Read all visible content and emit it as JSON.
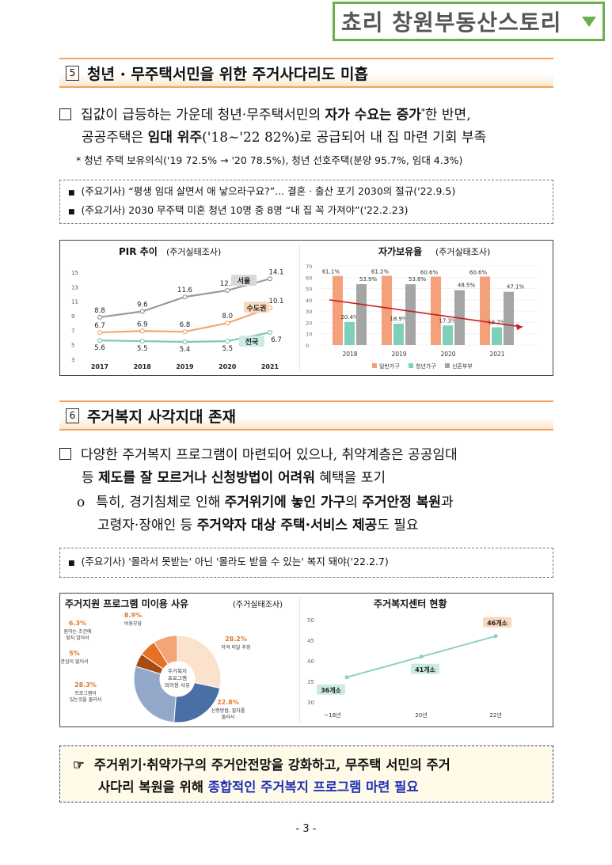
{
  "header_tag": "쵸리 창원부동산스토리",
  "section5": {
    "num": "5",
    "title": "청년 · 무주택서민을 위한 주거사다리도 미흡",
    "p1_a": "집값이 급등하는 가운데 청년·무주택서민의 ",
    "p1_b": "자가 수요는 증가",
    "p1_star": "*",
    "p1_c": "한 반면,",
    "p1_d": "공공주택은 ",
    "p1_e": "임대 위주",
    "p1_f": "('18~'22 82%)로 공급되어 내 집 마련 기회 부족",
    "note": "* 청년 주택 보유의식('19 72.5% → '20 78.5%), 청년 선호주택(분양 95.7%, 임대 4.3%)",
    "press": [
      "(주요기사) “평생 임대 살면서 애 낳으라구요?”... 결혼 · 출산 포기 2030의 절규('22.9.5)",
      "(주요기사) 2030 무주택 미혼 청년 10명 중 8명 “내 집 꼭 가져야”('22.2.23)"
    ]
  },
  "section6": {
    "num": "6",
    "title": "주거복지 사각지대 존재",
    "p1_a": "다양한 주거복지 프로그램이 마련되어 있으나, 취약계층은 공공임대",
    "p1_b": "등 ",
    "p1_c": "제도를 잘 모르거나 신청방법이 어려워",
    "p1_d": " 혜택을 포기",
    "p2_a": "특히, 경기침체로 인해 ",
    "p2_b": "주거위기에 놓인 가구",
    "p2_c": "의 ",
    "p2_d": "주거안정 복원",
    "p2_e": "과",
    "p2_f": "고령자·장애인 등 ",
    "p2_g": "주거약자 대상 주택·서비스 제공",
    "p2_h": "도 필요",
    "press": "(주요기사) '몰라서 못받는' 아닌 '몰라도 받을 수 있는' 복지 돼야('22.2.7)"
  },
  "conclusion": {
    "a": "주거위기·취약가구의 주거안전망을 강화하고, 무주택 서민의 주거",
    "b": "사다리 복원을 위해 ",
    "c": "종합적인 주거복지 프로그램 마련 필요"
  },
  "page_number": "- 3 -",
  "chart_data": [
    {
      "type": "line",
      "title": "PIR 추이",
      "subtitle": "(주거실태조사)",
      "x": [
        "2017",
        "2018",
        "2019",
        "2020",
        "2021"
      ],
      "ylim": [
        3,
        15
      ],
      "yticks": [
        "15",
        "13",
        "11",
        "9",
        "7",
        "5",
        "3"
      ],
      "series": [
        {
          "name": "서울",
          "values": [
            8.8,
            9.6,
            11.6,
            12.5,
            14.1
          ],
          "color": "#9a9a9a"
        },
        {
          "name": "수도권",
          "values": [
            6.7,
            6.9,
            6.8,
            8.0,
            10.1
          ],
          "color": "#f4a873"
        },
        {
          "name": "전국",
          "values": [
            5.6,
            5.5,
            5.4,
            5.5,
            6.7
          ],
          "color": "#7fc8b8"
        }
      ]
    },
    {
      "type": "bar",
      "title": "자가보유율",
      "subtitle": "(주거실태조사)",
      "categories": [
        "2018",
        "2019",
        "2020",
        "2021"
      ],
      "ylim": [
        0,
        70
      ],
      "yticks": [
        "70",
        "60",
        "50",
        "40",
        "30",
        "20",
        "10",
        "0"
      ],
      "series": [
        {
          "name": "일반가구",
          "values": [
            61.1,
            61.2,
            60.6,
            60.6
          ],
          "labels": [
            "61.1%",
            "61.2%",
            "60.6%",
            "60.6%"
          ],
          "color": "#f4a07a"
        },
        {
          "name": "청년가구",
          "values": [
            20.4,
            18.9,
            17.3,
            15.7
          ],
          "labels": [
            "20.4%",
            "18.9%",
            "17.3%",
            "15.7%"
          ],
          "color": "#7fcfbd"
        },
        {
          "name": "신혼부부",
          "values": [
            53.9,
            53.8,
            48.5,
            47.1
          ],
          "labels": [
            "53.9%",
            "53.8%",
            "48.5%",
            "47.1%"
          ],
          "color": "#a5a5a5"
        }
      ]
    },
    {
      "type": "pie",
      "title": "주거지원 프로그램 미이용 사유",
      "subtitle": "(주거실태조사)",
      "center_label": [
        "주거복지",
        "프로그램",
        "미이용 사유"
      ],
      "slices": [
        {
          "label": [
            "자격 미달 추정"
          ],
          "value": 28.2,
          "pct": "28.2%",
          "color": "#fbe2cc"
        },
        {
          "label": [
            "신청방법, 절차를",
            "몰라서"
          ],
          "value": 22.8,
          "pct": "22.8%",
          "color": "#4a6fa5"
        },
        {
          "label": [
            "프로그램이",
            "있는것을 몰라서"
          ],
          "value": 28.3,
          "pct": "28.3%",
          "color": "#93a8c8"
        },
        {
          "label": [
            "관심이 없어서"
          ],
          "value": 5,
          "pct": "5%",
          "color": "#a64b12"
        },
        {
          "label": [
            "원하는 조건에",
            "맞지 않아서"
          ],
          "value": 6.3,
          "pct": "6.3%",
          "color": "#e27225"
        },
        {
          "label": [
            "비용부담"
          ],
          "value": 8.9,
          "pct": "8.9%",
          "color": "#f2a575"
        }
      ]
    },
    {
      "type": "line",
      "title": "주거복지센터 현황",
      "x": [
        "~18년",
        "20년",
        "22년"
      ],
      "ylim": [
        30,
        50
      ],
      "yticks": [
        "50",
        "45",
        "40",
        "35",
        "30"
      ],
      "series": [
        {
          "values": [
            36,
            41,
            46
          ],
          "labels": [
            "36개소",
            "41개소",
            "46개소"
          ],
          "color": "#8fd0c4"
        }
      ]
    }
  ]
}
